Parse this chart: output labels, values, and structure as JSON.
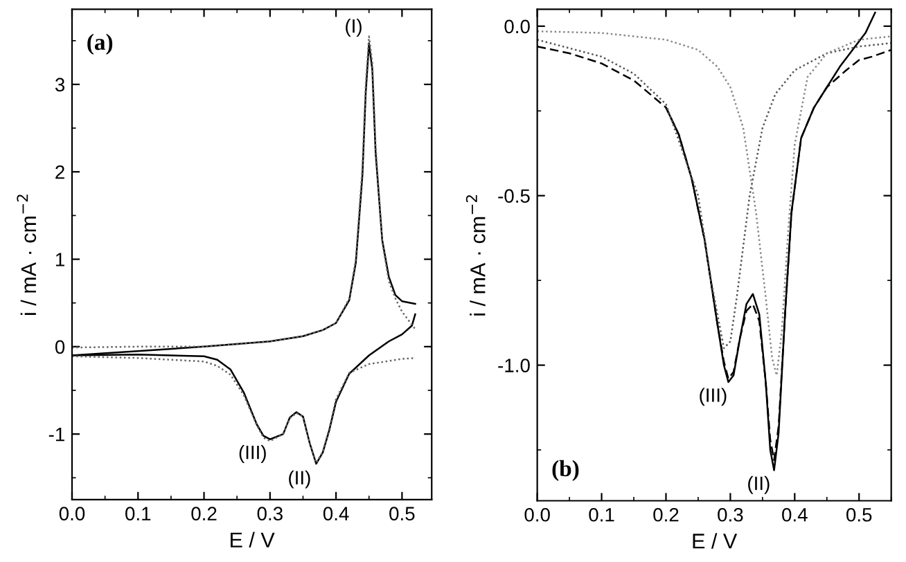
{
  "chart_data": [
    {
      "type": "line",
      "xlabel": "E / V",
      "ylabel": "i / mA · cm$^{−2}$",
      "xlim": [
        0,
        0.545
      ],
      "ylim": [
        -1.75,
        3.86
      ],
      "xticks": [
        {
          "value": 0,
          "label": "0.0"
        },
        0.1,
        0.2,
        0.3,
        0.4,
        0.5
      ],
      "yticks": [
        -1,
        0,
        1,
        2,
        3
      ],
      "annotations": [
        "(a)",
        {
          "text": "(I)",
          "x": 0.45,
          "y": 3.48
        },
        {
          "text": "(II)",
          "x": 0.368,
          "y": -1.35
        },
        {
          "text": "(III)",
          "x": 0.297,
          "y": -1.06
        }
      ],
      "series": [
        {
          "color": "#000000",
          "line_style": "solid",
          "x": [
            0,
            0.1,
            0.2,
            0.3,
            0.35,
            0.38,
            0.4,
            0.42,
            0.43,
            0.44,
            0.445,
            0.45,
            0.455,
            0.46,
            0.47,
            0.48,
            0.49,
            0.5,
            0.52
          ],
          "values": [
            -0.1,
            -0.05,
            0,
            0.06,
            0.12,
            0.19,
            0.27,
            0.53,
            0.96,
            1.96,
            2.9,
            3.47,
            3.17,
            2.22,
            1.22,
            0.8,
            0.59,
            0.52,
            0.49
          ]
        },
        {
          "color": "#000000",
          "line_style": "solid",
          "x": [
            0,
            0.1,
            0.2,
            0.22,
            0.24,
            0.26,
            0.28,
            0.29,
            0.3,
            0.32,
            0.33,
            0.34,
            0.35,
            0.36,
            0.37,
            0.38,
            0.39,
            0.4,
            0.42,
            0.45,
            0.48,
            0.5,
            0.515,
            0.52
          ],
          "values": [
            -0.1,
            -0.09,
            -0.11,
            -0.15,
            -0.26,
            -0.52,
            -0.89,
            -1.02,
            -1.06,
            -1.0,
            -0.81,
            -0.75,
            -0.8,
            -1.1,
            -1.34,
            -1.21,
            -0.95,
            -0.63,
            -0.31,
            -0.1,
            0.06,
            0.14,
            0.24,
            0.37
          ]
        },
        {
          "color": "#666666",
          "line_style": "dotted",
          "x": [
            0,
            0.1,
            0.2,
            0.3,
            0.35,
            0.38,
            0.4,
            0.42,
            0.43,
            0.44,
            0.445,
            0.45,
            0.455,
            0.46,
            0.47,
            0.48,
            0.49,
            0.5,
            0.51,
            0.52
          ],
          "values": [
            -0.01,
            0,
            0,
            0.06,
            0.12,
            0.19,
            0.27,
            0.55,
            1.0,
            2.05,
            3.0,
            3.55,
            3.25,
            2.3,
            1.2,
            0.75,
            0.55,
            0.4,
            0.3,
            0.2
          ]
        },
        {
          "color": "#666666",
          "line_style": "dotted",
          "x": [
            0,
            0.1,
            0.2,
            0.22,
            0.24,
            0.26,
            0.28,
            0.29,
            0.3,
            0.32,
            0.33,
            0.34,
            0.35,
            0.36,
            0.37,
            0.38,
            0.39,
            0.4,
            0.42,
            0.45,
            0.5,
            0.52
          ],
          "values": [
            -0.11,
            -0.13,
            -0.17,
            -0.22,
            -0.32,
            -0.55,
            -0.9,
            -1.04,
            -1.08,
            -1.0,
            -0.82,
            -0.76,
            -0.8,
            -1.1,
            -1.33,
            -1.2,
            -0.93,
            -0.6,
            -0.3,
            -0.2,
            -0.14,
            -0.13
          ]
        }
      ]
    },
    {
      "type": "line",
      "xlabel": "E / V",
      "ylabel": "i / mA · cm$^{−2}$",
      "xlim": [
        0,
        0.55
      ],
      "ylim": [
        -1.4,
        0.05
      ],
      "xticks": [
        {
          "value": 0,
          "label": "0.0"
        },
        0.1,
        0.2,
        0.3,
        0.4,
        0.5
      ],
      "yticks": [
        {
          "value": -1,
          "label": "-1.0"
        },
        -0.5,
        {
          "value": 0,
          "label": "0.0"
        }
      ],
      "annotations": [
        "(b)",
        {
          "text": "(III)",
          "x": 0.297,
          "y": -1.05
        },
        {
          "text": "(II)",
          "x": 0.368,
          "y": -1.31
        }
      ],
      "series": [
        {
          "color": "#000000",
          "line_style": "solid",
          "x": [
            0.2,
            0.22,
            0.24,
            0.26,
            0.28,
            0.29,
            0.297,
            0.305,
            0.315,
            0.325,
            0.335,
            0.345,
            0.355,
            0.362,
            0.368,
            0.375,
            0.385,
            0.395,
            0.41,
            0.43,
            0.45,
            0.47,
            0.49,
            0.51,
            0.525
          ],
          "values": [
            -0.24,
            -0.32,
            -0.45,
            -0.63,
            -0.88,
            -1.0,
            -1.05,
            -1.03,
            -0.92,
            -0.82,
            -0.79,
            -0.85,
            -1.05,
            -1.25,
            -1.31,
            -1.2,
            -0.85,
            -0.55,
            -0.33,
            -0.24,
            -0.18,
            -0.12,
            -0.07,
            -0.02,
            0.04
          ]
        },
        {
          "color": "#000000",
          "line_style": "dashed",
          "x": [
            0,
            0.05,
            0.1,
            0.15,
            0.2,
            0.22,
            0.24,
            0.26,
            0.28,
            0.29,
            0.297,
            0.305,
            0.315,
            0.325,
            0.335,
            0.345,
            0.355,
            0.362,
            0.368,
            0.375,
            0.385,
            0.395,
            0.41,
            0.43,
            0.45,
            0.48,
            0.5,
            0.52,
            0.55
          ],
          "values": [
            -0.06,
            -0.08,
            -0.11,
            -0.16,
            -0.24,
            -0.32,
            -0.45,
            -0.63,
            -0.88,
            -0.99,
            -1.04,
            -1.02,
            -0.92,
            -0.84,
            -0.82,
            -0.87,
            -1.05,
            -1.22,
            -1.28,
            -1.18,
            -0.85,
            -0.55,
            -0.33,
            -0.24,
            -0.18,
            -0.13,
            -0.1,
            -0.09,
            -0.07
          ]
        },
        {
          "color": "#555555",
          "line_style": "dotted",
          "x": [
            0,
            0.1,
            0.15,
            0.2,
            0.25,
            0.27,
            0.29,
            0.3,
            0.31,
            0.33,
            0.35,
            0.37,
            0.4,
            0.45,
            0.5,
            0.55
          ],
          "values": [
            -0.04,
            -0.09,
            -0.14,
            -0.23,
            -0.5,
            -0.75,
            -0.95,
            -0.93,
            -0.8,
            -0.5,
            -0.3,
            -0.2,
            -0.13,
            -0.08,
            -0.06,
            -0.05
          ]
        },
        {
          "color": "#888888",
          "line_style": "dotted",
          "x": [
            0,
            0.1,
            0.2,
            0.25,
            0.28,
            0.3,
            0.32,
            0.34,
            0.355,
            0.365,
            0.372,
            0.38,
            0.39,
            0.4,
            0.42,
            0.45,
            0.5,
            0.55
          ],
          "values": [
            -0.015,
            -0.02,
            -0.04,
            -0.07,
            -0.12,
            -0.18,
            -0.3,
            -0.55,
            -0.8,
            -0.98,
            -1.03,
            -0.9,
            -0.6,
            -0.35,
            -0.15,
            -0.08,
            -0.04,
            -0.03
          ]
        }
      ]
    }
  ]
}
